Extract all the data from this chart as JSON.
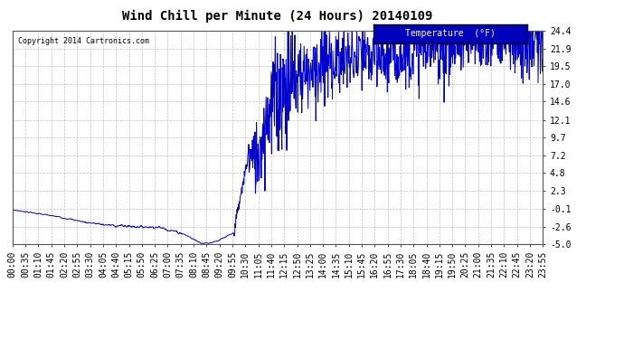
{
  "title": "Wind Chill per Minute (24 Hours) 20140109",
  "copyright": "Copyright 2014 Cartronics.com",
  "legend_label": "Temperature  (°F)",
  "yticks": [
    24.4,
    21.9,
    19.5,
    17.0,
    14.6,
    12.1,
    9.7,
    7.2,
    4.8,
    2.3,
    -0.1,
    -2.6,
    -5.0
  ],
  "ymin": -5.0,
  "ymax": 24.4,
  "line_color": "#0000cc",
  "background_color": "#ffffff",
  "grid_color": "#b0b0b0",
  "title_fontsize": 10,
  "tick_fontsize": 7,
  "xtick_labels": [
    "00:00",
    "00:35",
    "01:10",
    "01:45",
    "02:20",
    "02:55",
    "03:30",
    "04:05",
    "04:40",
    "05:15",
    "05:50",
    "06:25",
    "07:00",
    "07:35",
    "08:10",
    "08:45",
    "09:20",
    "09:55",
    "10:30",
    "11:05",
    "11:40",
    "12:15",
    "12:50",
    "13:25",
    "14:00",
    "14:35",
    "15:10",
    "15:45",
    "16:20",
    "16:55",
    "17:30",
    "18:05",
    "18:40",
    "19:15",
    "19:50",
    "20:25",
    "21:00",
    "21:35",
    "22:10",
    "22:45",
    "23:20",
    "23:55"
  ],
  "n_points": 1440,
  "segments": [
    {
      "t0": 0,
      "t1": 30,
      "v0": -0.3,
      "v1": -0.5,
      "noise": 0.05
    },
    {
      "t0": 30,
      "t1": 120,
      "v0": -0.5,
      "v1": -1.2,
      "noise": 0.08
    },
    {
      "t0": 120,
      "t1": 200,
      "v0": -1.2,
      "v1": -2.0,
      "noise": 0.1
    },
    {
      "t0": 200,
      "t1": 260,
      "v0": -2.0,
      "v1": -2.4,
      "noise": 0.15
    },
    {
      "t0": 260,
      "t1": 340,
      "v0": -2.4,
      "v1": -2.6,
      "noise": 0.2
    },
    {
      "t0": 340,
      "t1": 400,
      "v0": -2.6,
      "v1": -2.7,
      "noise": 0.15
    },
    {
      "t0": 400,
      "t1": 460,
      "v0": -2.7,
      "v1": -3.5,
      "noise": 0.2
    },
    {
      "t0": 460,
      "t1": 510,
      "v0": -3.5,
      "v1": -4.8,
      "noise": 0.15
    },
    {
      "t0": 510,
      "t1": 530,
      "v0": -4.8,
      "v1": -4.9,
      "noise": 0.1
    },
    {
      "t0": 530,
      "t1": 560,
      "v0": -4.9,
      "v1": -4.5,
      "noise": 0.1
    },
    {
      "t0": 560,
      "t1": 600,
      "v0": -4.5,
      "v1": -3.5,
      "noise": 0.1
    },
    {
      "t0": 600,
      "t1": 640,
      "v0": -3.5,
      "v1": 7.0,
      "noise": 0.5
    },
    {
      "t0": 640,
      "t1": 660,
      "v0": 7.0,
      "v1": 6.5,
      "noise": 2.0
    },
    {
      "t0": 660,
      "t1": 700,
      "v0": 6.5,
      "v1": 14.0,
      "noise": 3.0
    },
    {
      "t0": 700,
      "t1": 760,
      "v0": 14.0,
      "v1": 18.0,
      "noise": 4.0
    },
    {
      "t0": 760,
      "t1": 850,
      "v0": 18.0,
      "v1": 20.0,
      "noise": 3.5
    },
    {
      "t0": 850,
      "t1": 950,
      "v0": 20.0,
      "v1": 20.5,
      "noise": 2.5
    },
    {
      "t0": 950,
      "t1": 1050,
      "v0": 20.5,
      "v1": 21.0,
      "noise": 2.5
    },
    {
      "t0": 1050,
      "t1": 1150,
      "v0": 21.0,
      "v1": 22.0,
      "noise": 2.0
    },
    {
      "t0": 1150,
      "t1": 1250,
      "v0": 22.0,
      "v1": 23.0,
      "noise": 2.5
    },
    {
      "t0": 1250,
      "t1": 1350,
      "v0": 23.0,
      "v1": 23.5,
      "noise": 2.0
    },
    {
      "t0": 1350,
      "t1": 1440,
      "v0": 23.5,
      "v1": 23.0,
      "noise": 3.0
    }
  ]
}
